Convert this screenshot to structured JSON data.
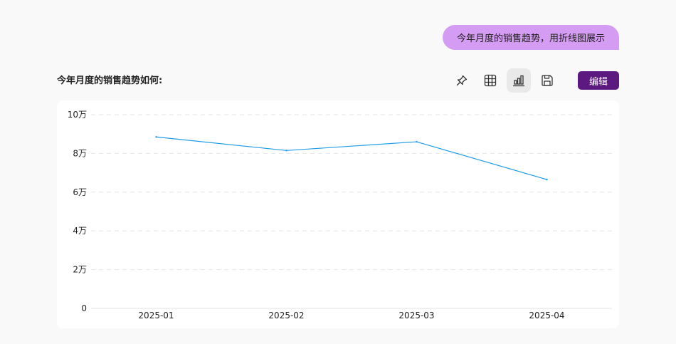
{
  "conversation": {
    "user_message": "今年月度的销售趋势，用折线图展示",
    "question_title": "今年月度的销售趋势如何:"
  },
  "toolbar": {
    "icons": [
      "pin-icon",
      "table-icon",
      "bar-chart-icon",
      "save-icon"
    ],
    "active_icon": "bar-chart-icon",
    "edit_label": "编辑"
  },
  "colors": {
    "line": "#1e9be5",
    "edit_button": "#5c1a80",
    "user_bubble": "#d59cf3"
  },
  "chart_data": {
    "type": "line",
    "categories": [
      "2025-01",
      "2025-02",
      "2025-03",
      "2025-04"
    ],
    "series": [
      {
        "values": [
          88500,
          81500,
          86000,
          66500
        ]
      }
    ],
    "ylim": [
      0,
      100000
    ],
    "yticks": [
      {
        "value": 0,
        "label": "0"
      },
      {
        "value": 20000,
        "label": "2万"
      },
      {
        "value": 40000,
        "label": "4万"
      },
      {
        "value": 60000,
        "label": "6万"
      },
      {
        "value": 80000,
        "label": "8万"
      },
      {
        "value": 100000,
        "label": "10万"
      }
    ],
    "grid": true,
    "legend": "none"
  }
}
